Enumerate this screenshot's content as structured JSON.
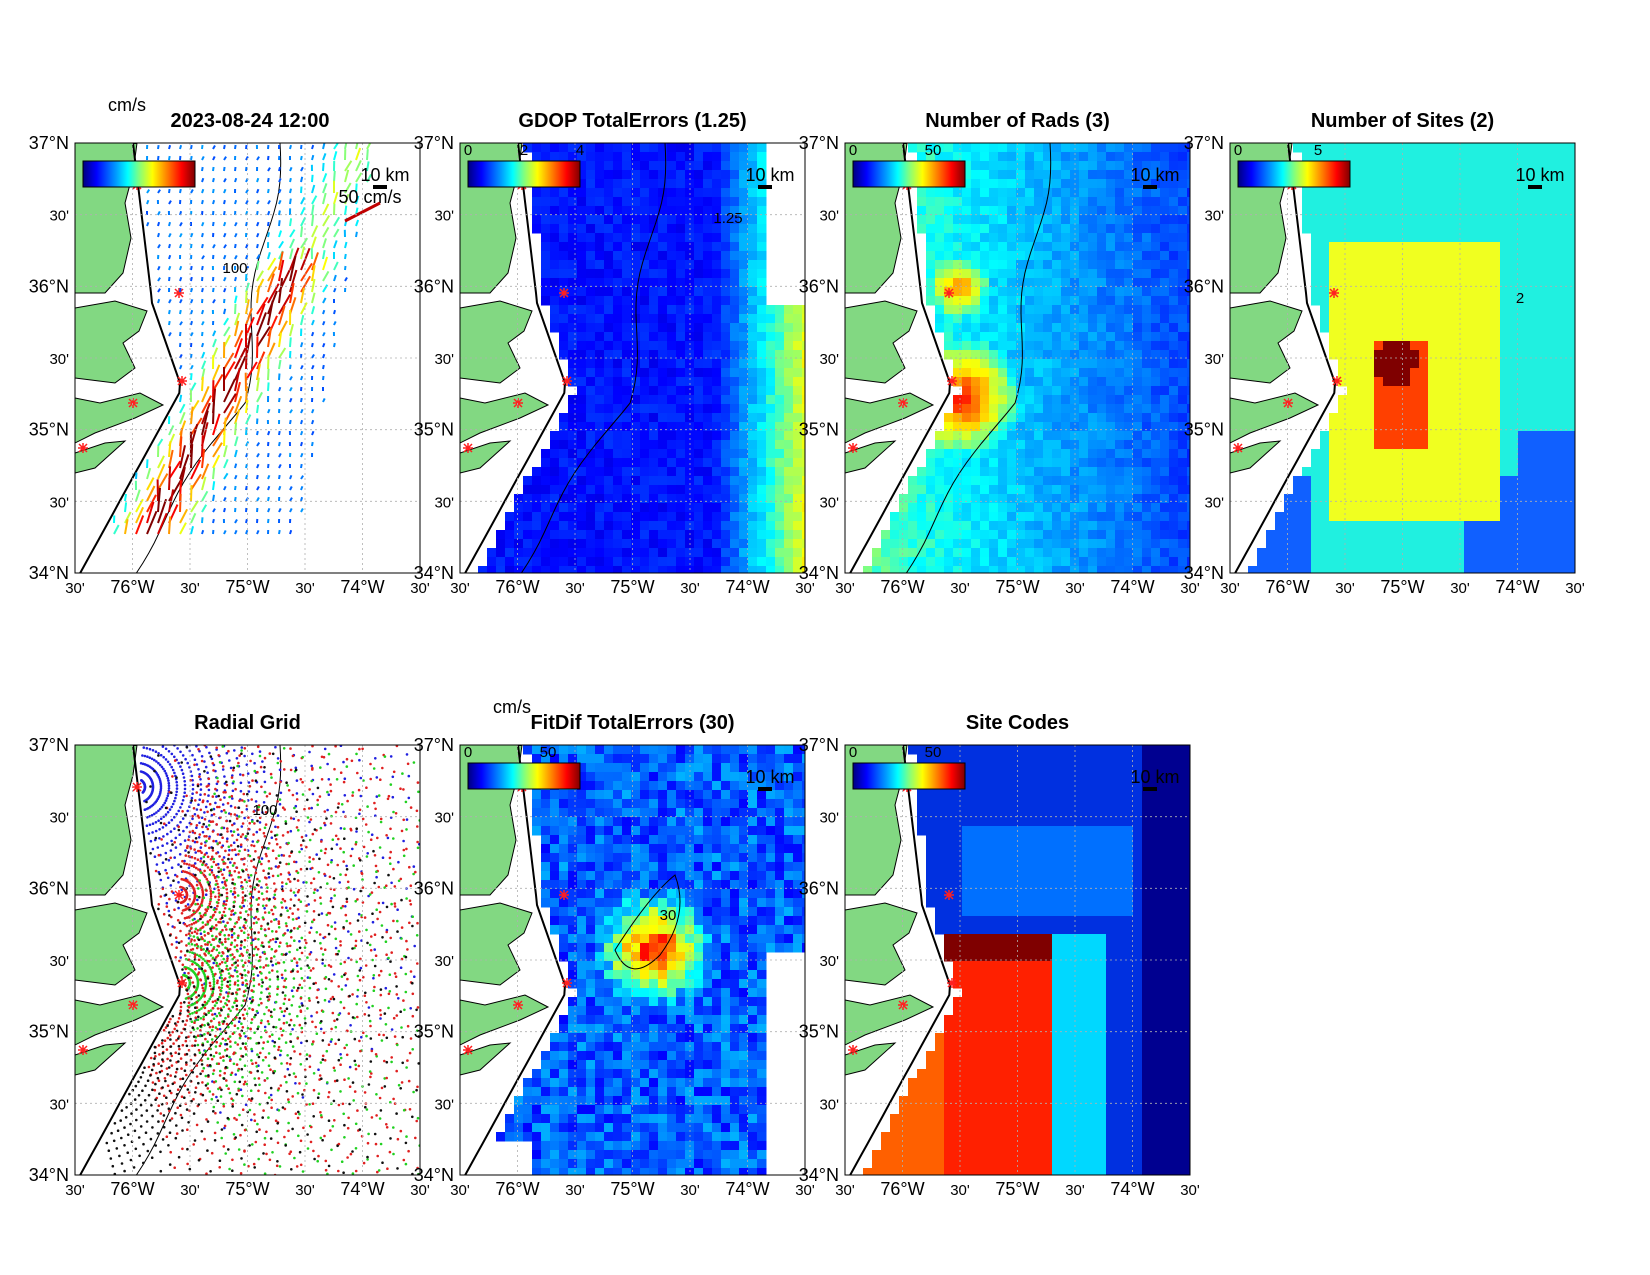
{
  "figure": {
    "date_title": "2023-08-24 12:00",
    "lon_ticks": [
      "30'",
      "76°W",
      "30'",
      "75°W",
      "30'",
      "74°W",
      "30'"
    ],
    "lat_ticks": [
      "37°N",
      "30'",
      "36°N",
      "30'",
      "35°N",
      "30'",
      "34°N"
    ],
    "scale_label": "10 km",
    "contour_label_bathy": "100",
    "colors": {
      "land": "#82d882",
      "cb_stops": [
        "#00007f",
        "#0000ff",
        "#00a0ff",
        "#00ffff",
        "#80ff80",
        "#ffff00",
        "#ff8000",
        "#ff0000",
        "#7f0000"
      ]
    }
  },
  "panels": [
    {
      "id": "currents",
      "title": "2023-08-24 12:00",
      "cb_unit": "cm/s",
      "cb_labels": [],
      "vector_scale_label": "50 cm/s",
      "kind": "vectors"
    },
    {
      "id": "gdop",
      "title": "GDOP TotalErrors (1.25)",
      "cb_unit": "",
      "cb_labels": [
        "0",
        "2",
        "4"
      ],
      "contour_label": "1.25",
      "kind": "grid"
    },
    {
      "id": "nrads",
      "title": "Number of Rads (3)",
      "cb_unit": "",
      "cb_labels": [
        "0",
        "50"
      ],
      "kind": "grid"
    },
    {
      "id": "nsites",
      "title": "Number of Sites (2)",
      "cb_unit": "",
      "cb_labels": [
        "0",
        "5"
      ],
      "contour_label": "2",
      "kind": "grid"
    },
    {
      "id": "radial",
      "title": "Radial Grid",
      "kind": "radial"
    },
    {
      "id": "fitdif",
      "title": "FitDif TotalErrors (30)",
      "cb_unit": "cm/s",
      "cb_labels": [
        "0",
        "50"
      ],
      "contour_label": "30",
      "kind": "grid"
    },
    {
      "id": "sitecodes",
      "title": "Site Codes",
      "cb_unit": "",
      "cb_labels": [
        "0",
        "50"
      ],
      "kind": "grid"
    }
  ]
}
